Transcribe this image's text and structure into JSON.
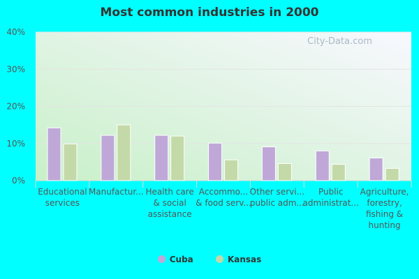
{
  "chart_data": {
    "type": "bar",
    "title": "Most common industries in 2000",
    "categories": [
      [
        "Educational",
        "services"
      ],
      [
        "Manufactur..."
      ],
      [
        "Health care",
        "& social",
        "assistance"
      ],
      [
        "Accommo...",
        "& food serv..."
      ],
      [
        "Other servi...",
        "public adm..."
      ],
      [
        "Public",
        "administrat..."
      ],
      [
        "Agriculture,",
        "forestry,",
        "fishing &",
        "hunting"
      ]
    ],
    "series": [
      {
        "name": "Cuba",
        "color": "#bfa8d8",
        "values": [
          14.2,
          12.2,
          12.2,
          10.1,
          9.1,
          8.0,
          6.1
        ]
      },
      {
        "name": "Kansas",
        "color": "#c4d9a8",
        "values": [
          9.9,
          15.0,
          12.0,
          5.6,
          4.6,
          4.4,
          3.3
        ]
      }
    ],
    "y_ticks": [
      "0%",
      "10%",
      "20%",
      "30%",
      "40%"
    ],
    "ylim": [
      0,
      40
    ],
    "grid": true,
    "legend": "bottom",
    "watermark": "City-Data.com"
  }
}
